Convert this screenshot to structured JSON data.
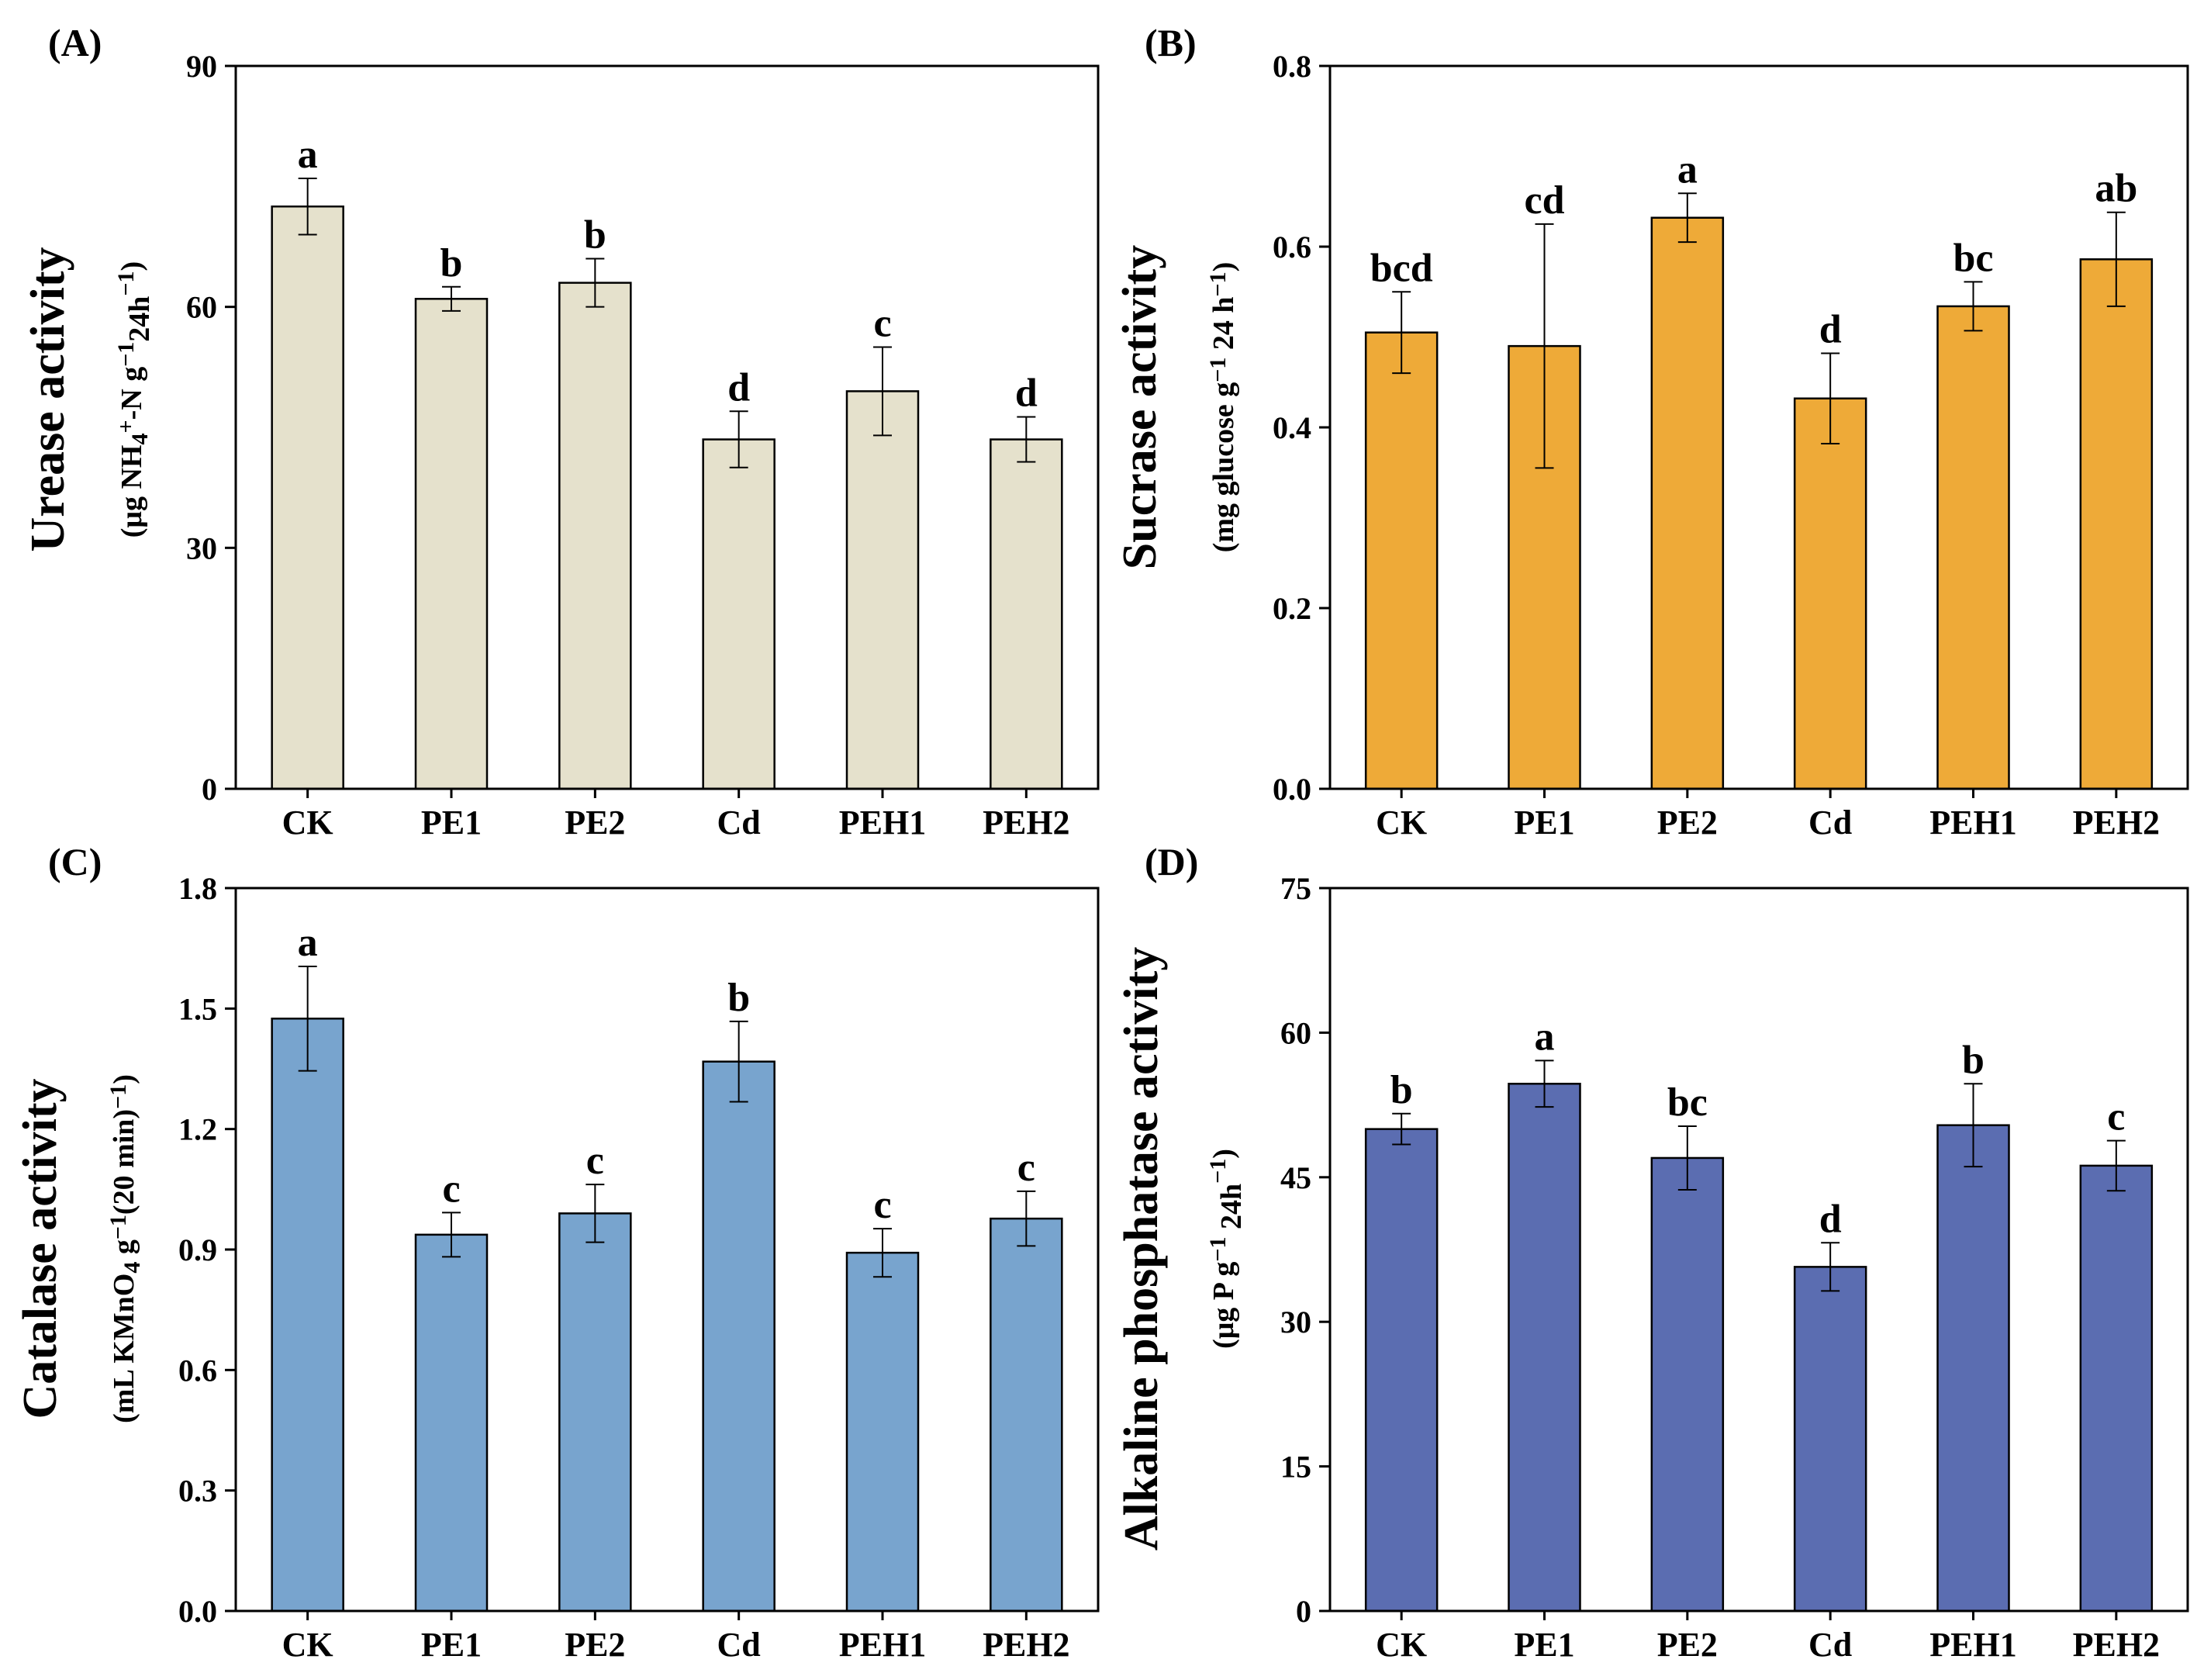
{
  "chart_data": [
    {
      "id": "A",
      "type": "bar",
      "panel_label": "(A)",
      "ylabel": "Urease activity",
      "yunit": "(μg NH4+-N g−1 24h−1)",
      "yunit_parts": {
        "open": "(μg NH",
        "sub1": "4",
        "sup1": "+",
        "mid": "-N g",
        "sup2": "−1",
        "sub2": "24h",
        "sup3": "−1",
        "close": ")"
      },
      "categories": [
        "CK",
        "PE1",
        "PE2",
        "Cd",
        "PEH1",
        "PEH2"
      ],
      "values": [
        72.5,
        61,
        63,
        43.5,
        49.5,
        43.5
      ],
      "errors": [
        3.5,
        1.5,
        3,
        3.5,
        5.5,
        2.8
      ],
      "letters": [
        "a",
        "b",
        "b",
        "d",
        "c",
        "d"
      ],
      "ylim": [
        0,
        90
      ],
      "yticks": [
        0,
        30,
        60,
        90
      ],
      "tick_labels": [
        "0",
        "30",
        "60",
        "90"
      ],
      "color": "#e5e1cc"
    },
    {
      "id": "B",
      "type": "bar",
      "panel_label": "(B)",
      "ylabel": "Sucrase activity",
      "yunit": "(mg glucose g−1 24 h−1)",
      "yunit_parts": {
        "open": "(mg glucose g",
        "sup1": "−1",
        "mid": " 24 h",
        "sup2": "−1",
        "close": ")"
      },
      "categories": [
        "CK",
        "PE1",
        "PE2",
        "Cd",
        "PEH1",
        "PEH2"
      ],
      "values": [
        0.505,
        0.49,
        0.632,
        0.432,
        0.534,
        0.586
      ],
      "errors": [
        0.045,
        0.135,
        0.027,
        0.05,
        0.027,
        0.052
      ],
      "letters": [
        "bcd",
        "cd",
        "a",
        "d",
        "bc",
        "ab"
      ],
      "ylim": [
        0,
        0.8
      ],
      "yticks": [
        0,
        0.2,
        0.4,
        0.6,
        0.8
      ],
      "tick_labels": [
        "0.0",
        "0.2",
        "0.4",
        "0.6",
        "0.8"
      ],
      "color": "#eeaa38"
    },
    {
      "id": "C",
      "type": "bar",
      "panel_label": "(C)",
      "ylabel": "Catalase activity",
      "yunit": "(mL KMnO4 g−1(20 min)−1)",
      "yunit_parts": {
        "open": "(mL KMnO",
        "sub1": "4",
        "mid": " g",
        "sup1": "−1",
        "mid2": "(20 min)",
        "sup2": "−1",
        "close": ")"
      },
      "categories": [
        "CK",
        "PE1",
        "PE2",
        "Cd",
        "PEH1",
        "PEH2"
      ],
      "values": [
        1.475,
        0.937,
        0.99,
        1.368,
        0.892,
        0.977
      ],
      "errors": [
        0.13,
        0.055,
        0.072,
        0.1,
        0.06,
        0.068
      ],
      "letters": [
        "a",
        "c",
        "c",
        "b",
        "c",
        "c"
      ],
      "ylim": [
        0,
        1.8
      ],
      "yticks": [
        0,
        0.3,
        0.6,
        0.9,
        1.2,
        1.5,
        1.8
      ],
      "tick_labels": [
        "0.0",
        "0.3",
        "0.6",
        "0.9",
        "1.2",
        "1.5",
        "1.8"
      ],
      "color": "#78a4ce"
    },
    {
      "id": "D",
      "type": "bar",
      "panel_label": "(D)",
      "ylabel": "Alkaline phosphatase activity",
      "yunit": "(μg P g−1 24h−1)",
      "yunit_parts": {
        "open": "(μg P g",
        "sup1": "−1",
        "mid": " 24h",
        "sup2": "−1",
        "close": ")"
      },
      "categories": [
        "CK",
        "PE1",
        "PE2",
        "Cd",
        "PEH1",
        "PEH2"
      ],
      "values": [
        50,
        54.7,
        47,
        35.7,
        50.4,
        46.2
      ],
      "errors": [
        1.6,
        2.4,
        3.3,
        2.5,
        4.3,
        2.6
      ],
      "letters": [
        "b",
        "a",
        "bc",
        "d",
        "b",
        "c"
      ],
      "ylim": [
        0,
        75
      ],
      "yticks": [
        0,
        15,
        30,
        45,
        60,
        75
      ],
      "tick_labels": [
        "0",
        "15",
        "30",
        "45",
        "60",
        "75"
      ],
      "color": "#5b6db1"
    }
  ]
}
